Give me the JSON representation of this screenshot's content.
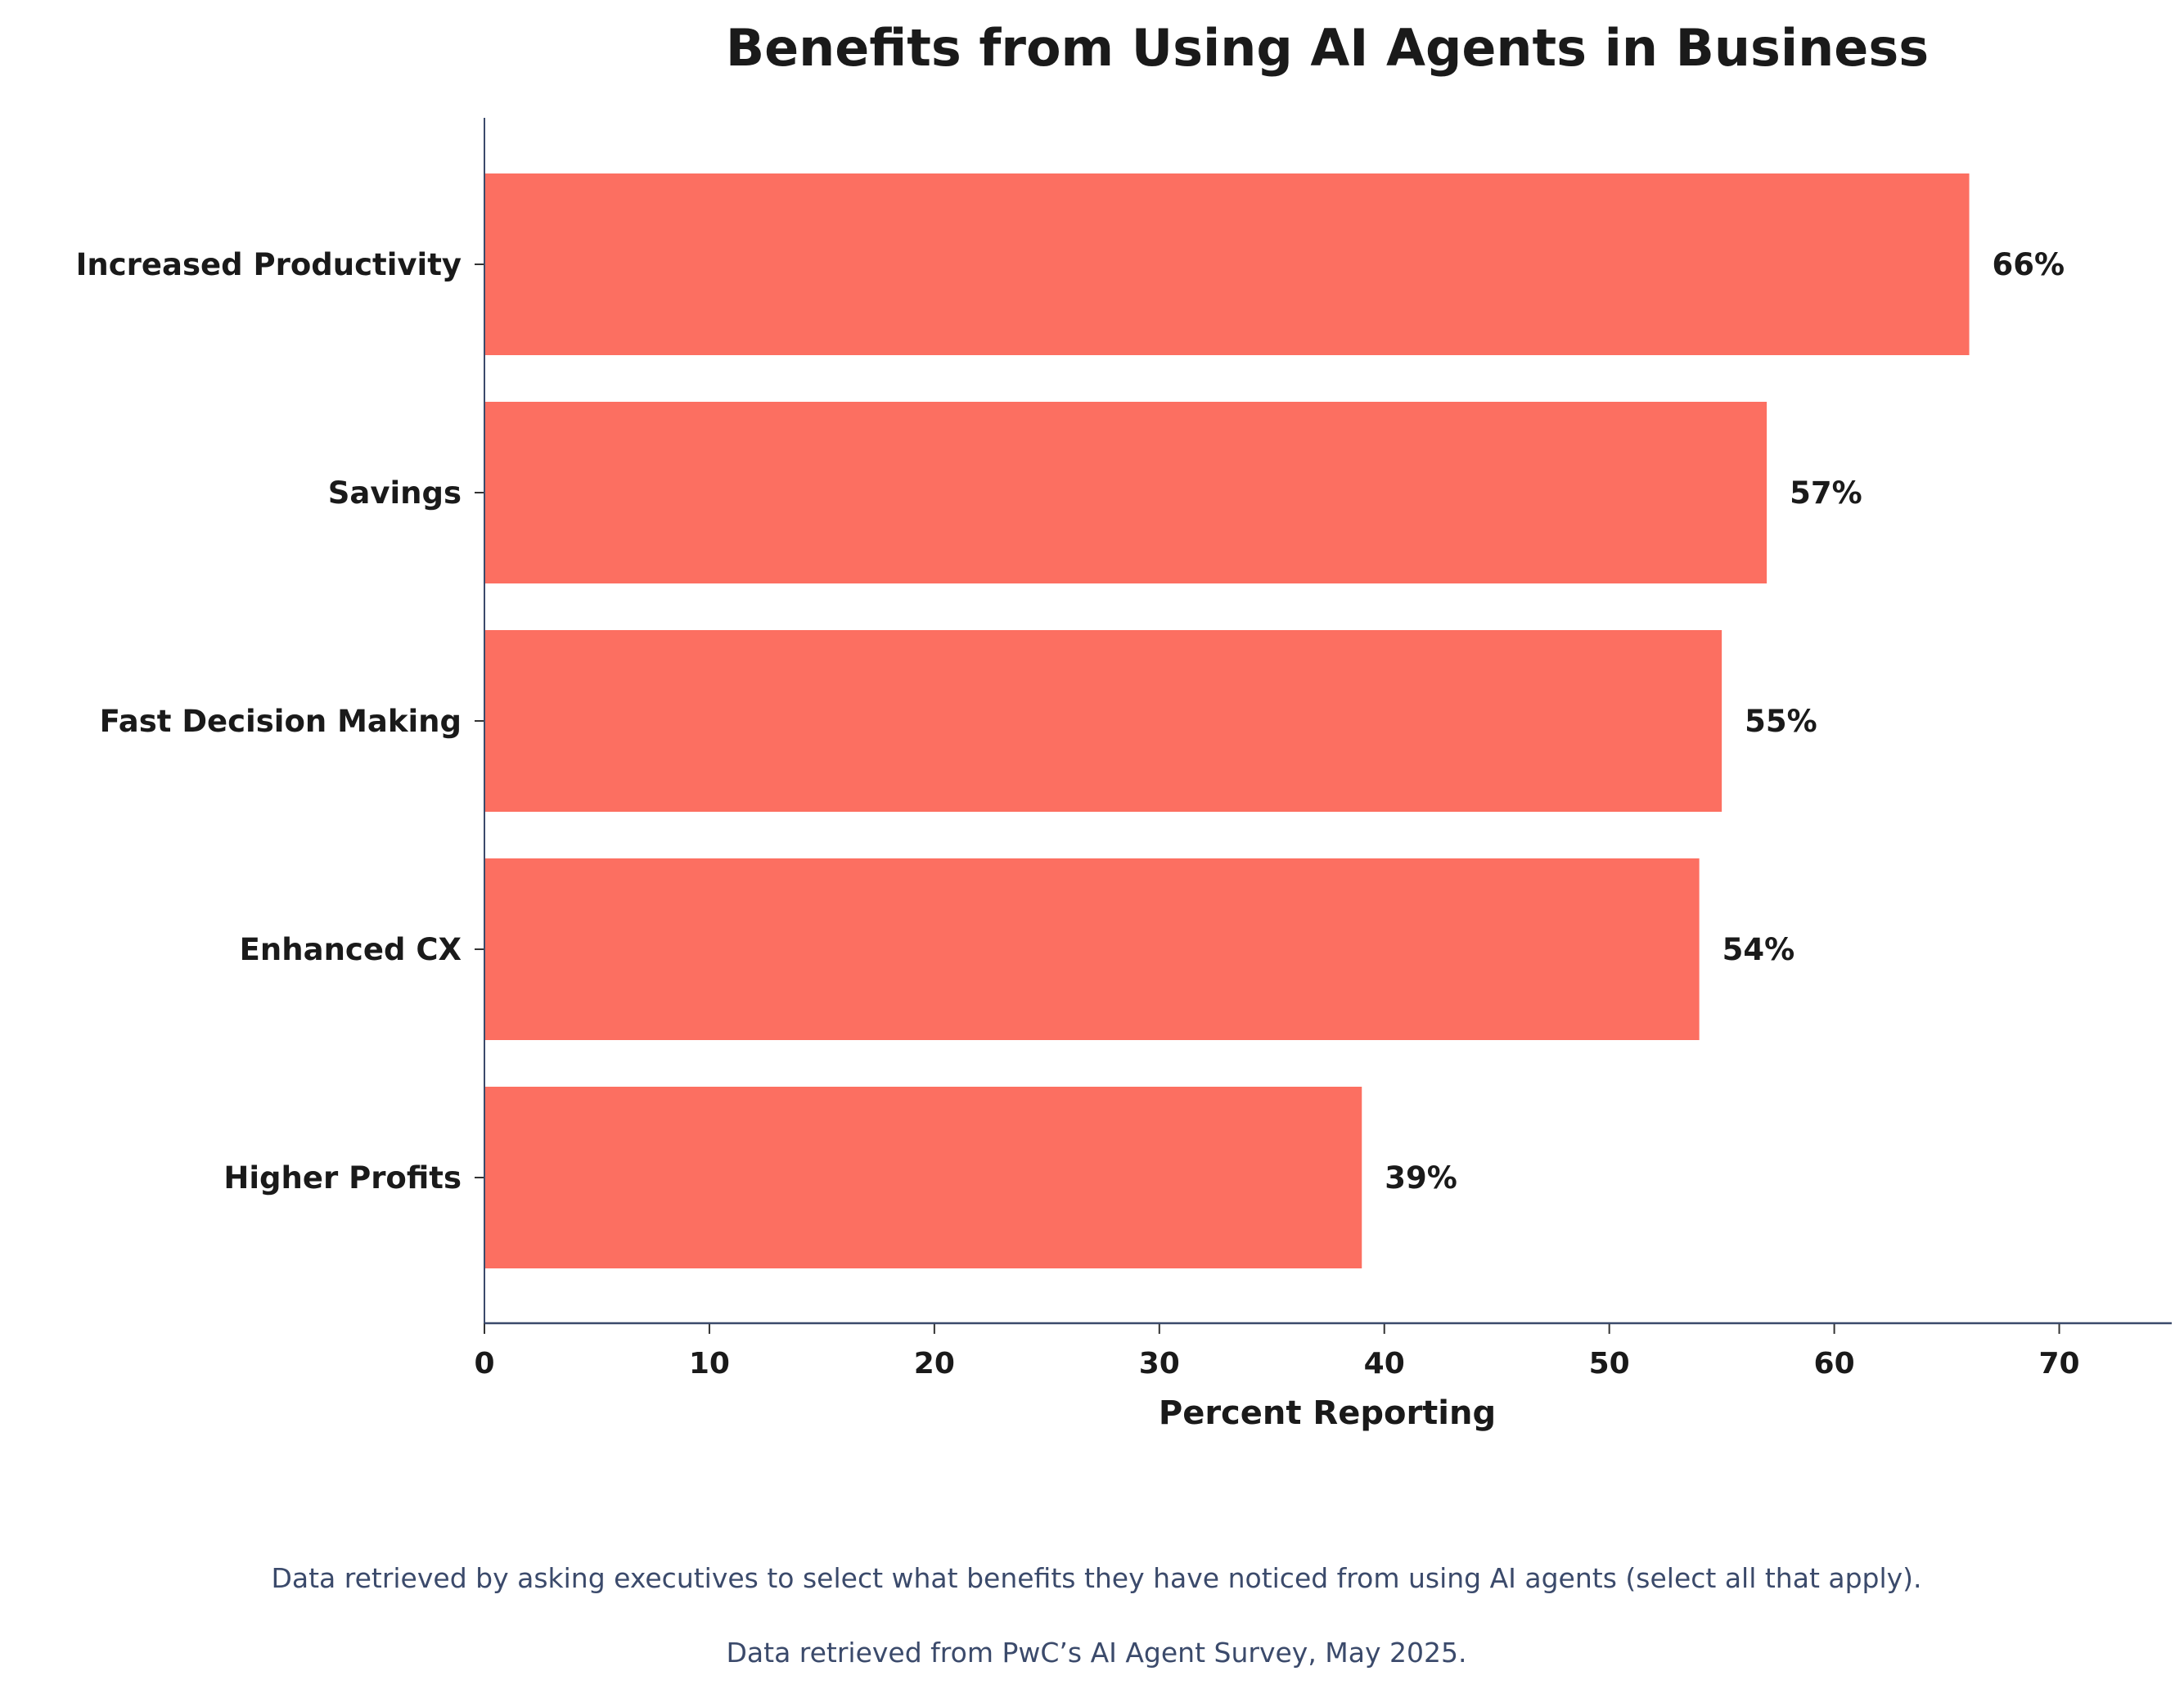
{
  "chart_data": {
    "type": "bar",
    "orientation": "horizontal",
    "title": "Benefits from Using AI Agents in Business",
    "xlabel": "Percent Reporting",
    "ylabel": "",
    "categories": [
      "Increased Productivity",
      "Savings",
      "Fast Decision Making",
      "Enhanced CX",
      "Higher Profits"
    ],
    "values": [
      66,
      57,
      55,
      54,
      39
    ],
    "data_labels": [
      "66%",
      "57%",
      "55%",
      "54%",
      "39%"
    ],
    "xlim": [
      0,
      75
    ],
    "xticks": [
      "0",
      "10",
      "20",
      "30",
      "40",
      "50",
      "60",
      "70"
    ],
    "grid": false,
    "legend": "none",
    "bar_color": "#fc6f61",
    "axis_color": "#3b4a6b"
  },
  "footnotes": [
    "Data retrieved by asking executives to select what benefits they have noticed from using AI agents (select all that apply).",
    "Data retrieved from PwC’s AI Agent Survey, May 2025."
  ]
}
